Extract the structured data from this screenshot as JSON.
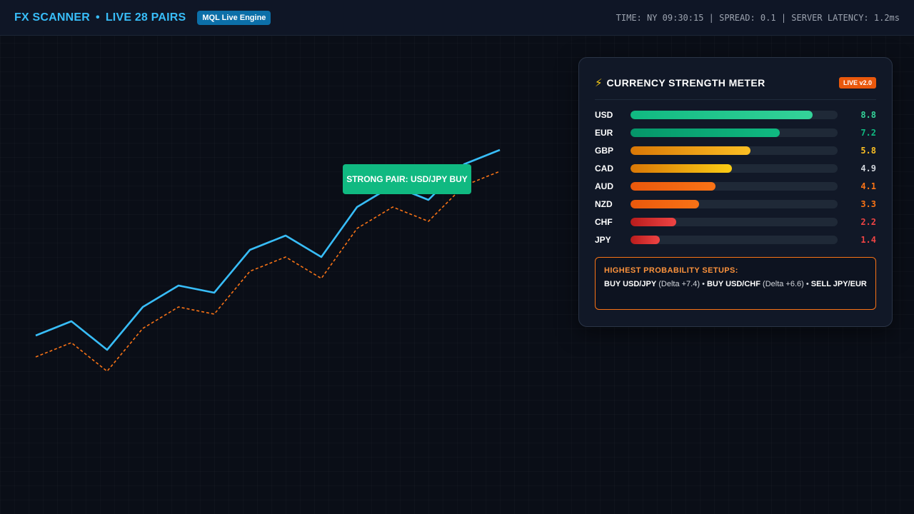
{
  "header": {
    "brand": "FX SCANNER",
    "separator": "•",
    "pairs": "LIVE 28 PAIRS",
    "engine_badge": "MQL Live Engine",
    "status": "TIME: NY 09:30:15 | SPREAD: 0.1 | SERVER LATENCY: 1.2ms"
  },
  "chart": {
    "signal_label": "STRONG PAIR: USD/JPY BUY",
    "colors": {
      "primary": "#38bdf8",
      "secondary": "#f97316"
    }
  },
  "panel": {
    "icon": "bolt-icon",
    "title": "CURRENCY STRENGTH METER",
    "badge": "LIVE v2.0",
    "max_value": 10,
    "rows": [
      {
        "code": "USD",
        "value": "8.8",
        "color": "#34d399"
      },
      {
        "code": "EUR",
        "value": "7.2",
        "color": "#10b981"
      },
      {
        "code": "GBP",
        "value": "5.8",
        "color": "#fbbf24"
      },
      {
        "code": "CAD",
        "value": "4.9",
        "color": "#d1d5db"
      },
      {
        "code": "AUD",
        "value": "4.1",
        "color": "#f97316"
      },
      {
        "code": "NZD",
        "value": "3.3",
        "color": "#f97316"
      },
      {
        "code": "CHF",
        "value": "2.2",
        "color": "#ef4444"
      },
      {
        "code": "JPY",
        "value": "1.4",
        "color": "#ef4444"
      }
    ],
    "setups": {
      "title": "HIGHEST PROBABILITY SETUPS:",
      "s1_action": "BUY USD/JPY",
      "s1_delta": "(Delta +7.4)",
      "sep": "•",
      "s2_action": "BUY USD/CHF",
      "s2_delta": "(Delta +6.6)",
      "s3_action": "SELL JPY/EUR"
    }
  }
}
